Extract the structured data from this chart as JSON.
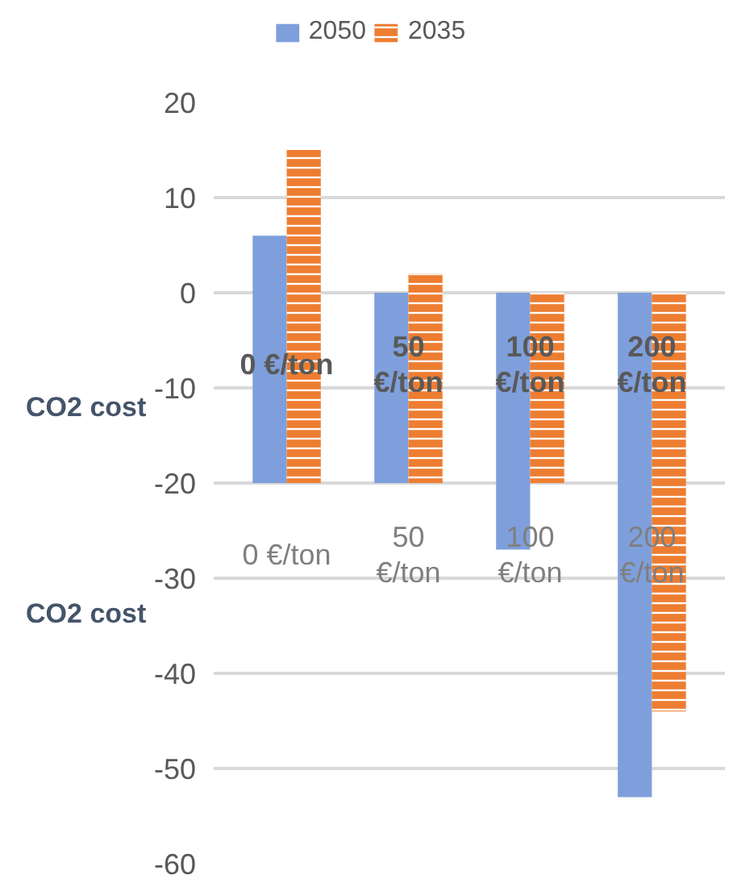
{
  "chart_data": {
    "type": "bar",
    "categories": [
      "0 €/ton",
      "50 €/ton",
      "100 €/ton",
      "200 €/ton"
    ],
    "series": [
      {
        "name": "2050",
        "color": "#7f9fdc",
        "values": [
          26,
          20,
          -27,
          -53
        ],
        "base": [
          -20,
          -20,
          0,
          0
        ]
      },
      {
        "name": "2035",
        "color": "#ed7d31",
        "values": [
          35,
          22,
          -20,
          -44
        ],
        "base": [
          -20,
          -20,
          0,
          0
        ]
      }
    ],
    "xlabel": "CO2 cost",
    "annotations": [
      "0 €/ton",
      "50 €/ton",
      "100 €/ton",
      "200 €/ton",
      "CO2 cost"
    ],
    "ylim": [
      -60,
      20
    ],
    "yticks": [
      20,
      10,
      0,
      -10,
      -20,
      -30,
      -40,
      -50,
      -60
    ],
    "grid": "y",
    "legend": "top"
  }
}
